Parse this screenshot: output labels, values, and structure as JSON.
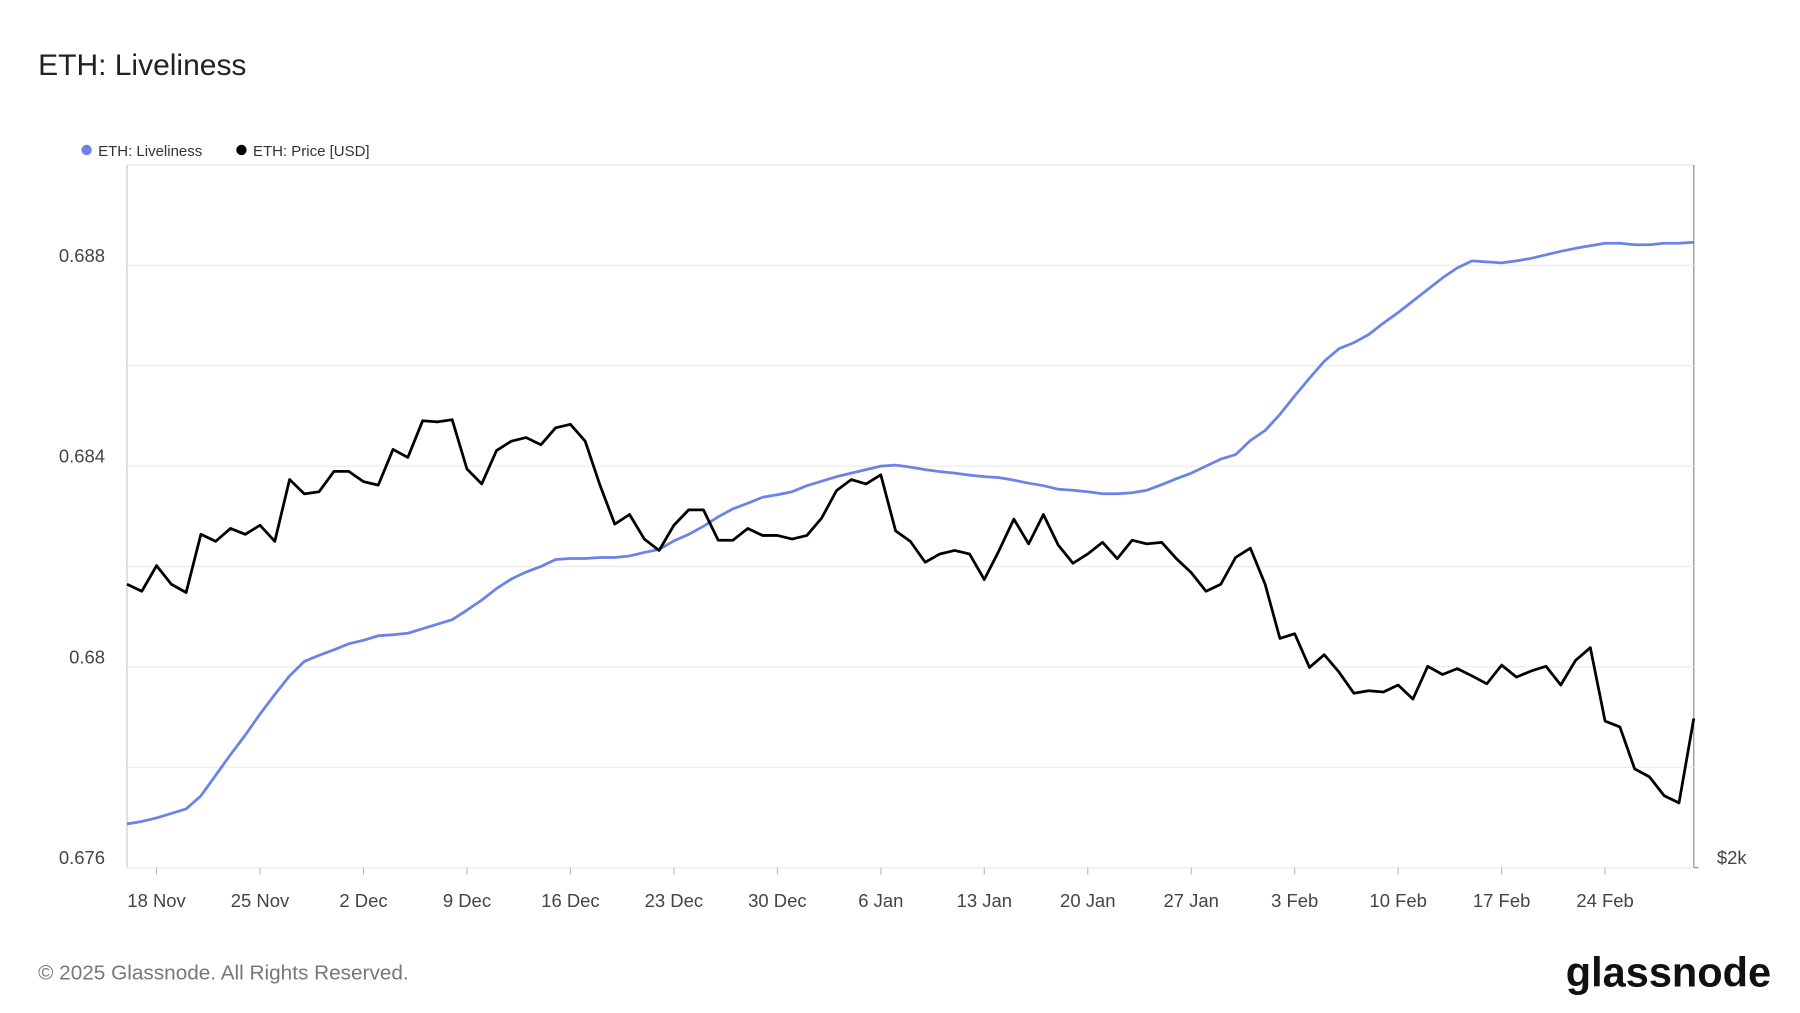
{
  "chart_data": {
    "type": "line",
    "title": "ETH: Liveliness",
    "footer": "© 2025 Glassnode. All Rights Reserved.",
    "brand": "glassnode",
    "categories": [
      null,
      null,
      "18 Nov",
      null,
      null,
      null,
      null,
      null,
      null,
      "25 Nov",
      null,
      null,
      null,
      null,
      null,
      null,
      "2 Dec",
      null,
      null,
      null,
      null,
      null,
      null,
      "9 Dec",
      null,
      null,
      null,
      null,
      null,
      null,
      "16 Dec",
      null,
      null,
      null,
      null,
      null,
      null,
      "23 Dec",
      null,
      null,
      null,
      null,
      null,
      null,
      "30 Dec",
      null,
      null,
      null,
      null,
      null,
      null,
      "6 Jan",
      null,
      null,
      null,
      null,
      null,
      null,
      "13 Jan",
      null,
      null,
      null,
      null,
      null,
      null,
      "20 Jan",
      null,
      null,
      null,
      null,
      null,
      null,
      "27 Jan",
      null,
      null,
      null,
      null,
      null,
      null,
      "3 Feb",
      null,
      null,
      null,
      null,
      null,
      null,
      "10 Feb",
      null,
      null,
      null,
      null,
      null,
      null,
      "17 Feb",
      null,
      null,
      null,
      null,
      null,
      null,
      "24 Feb",
      null,
      null,
      null,
      null,
      null,
      null
    ],
    "series": [
      {
        "name": "ETH: Liveliness",
        "color": "#6b83e6",
        "axis": "y",
        "values": [
          0.67687,
          0.67692,
          0.67699,
          0.67708,
          0.67717,
          0.67743,
          0.67784,
          0.67825,
          0.67864,
          0.67906,
          0.67945,
          0.67982,
          0.68011,
          0.68023,
          0.68034,
          0.68046,
          0.68053,
          0.68062,
          0.68064,
          0.68067,
          0.68076,
          0.68085,
          0.68094,
          0.68113,
          0.68133,
          0.68156,
          0.68175,
          0.68189,
          0.682,
          0.68214,
          0.68216,
          0.68216,
          0.68218,
          0.68218,
          0.68221,
          0.68228,
          0.68234,
          0.68251,
          0.68264,
          0.6828,
          0.68299,
          0.68315,
          0.68326,
          0.68338,
          0.68343,
          0.68349,
          0.68361,
          0.6837,
          0.68379,
          0.68386,
          0.68393,
          0.684,
          0.68402,
          0.68398,
          0.68393,
          0.68389,
          0.68386,
          0.68382,
          0.68379,
          0.68377,
          0.68372,
          0.68366,
          0.68361,
          0.68354,
          0.68352,
          0.68349,
          0.68345,
          0.68345,
          0.68347,
          0.68352,
          0.68363,
          0.68375,
          0.68386,
          0.684,
          0.68414,
          0.68423,
          0.68451,
          0.68471,
          0.68503,
          0.6854,
          0.68575,
          0.68609,
          0.68634,
          0.68646,
          0.68662,
          0.68685,
          0.68706,
          0.68729,
          0.68752,
          0.68775,
          0.68795,
          0.68809,
          0.68807,
          0.68805,
          0.68809,
          0.68814,
          0.68821,
          0.68828,
          0.68834,
          0.68839,
          0.68844,
          0.68844,
          0.68841,
          0.68841,
          0.68844,
          0.68844,
          0.68846
        ]
      },
      {
        "name": "ETH: Price [USD]",
        "color": "#000000",
        "axis": "y2",
        "values": [
          3115,
          3081,
          3207,
          3115,
          3075,
          3368,
          3331,
          3399,
          3368,
          3416,
          3331,
          3669,
          3588,
          3600,
          3716,
          3716,
          3657,
          3637,
          3846,
          3798,
          4022,
          4015,
          4029,
          3730,
          3644,
          3839,
          3896,
          3918,
          3874,
          3978,
          4000,
          3896,
          3637,
          3422,
          3474,
          3343,
          3284,
          3416,
          3499,
          3499,
          3337,
          3337,
          3399,
          3362,
          3362,
          3343,
          3362,
          3455,
          3606,
          3669,
          3644,
          3696,
          3386,
          3331,
          3224,
          3266,
          3284,
          3266,
          3138,
          3284,
          3449,
          3318,
          3474,
          3312,
          3219,
          3266,
          3326,
          3242,
          3337,
          3318,
          3326,
          3242,
          3172,
          3081,
          3115,
          3248,
          3296,
          3115,
          2862,
          2883,
          2735,
          2790,
          2715,
          2627,
          2637,
          2632,
          2661,
          2603,
          2740,
          2705,
          2730,
          2699,
          2666,
          2745,
          2694,
          2720,
          2740,
          2661,
          2765,
          2821,
          2515,
          2492,
          2334,
          2305,
          2238,
          2213,
          2525
        ]
      }
    ],
    "ylim": [
      0.676,
      0.69
    ],
    "yticks": [
      0.676,
      0.68,
      0.684,
      0.688
    ],
    "yminorticks": [
      0.678,
      0.682,
      0.686
    ],
    "y2lim": [
      2000,
      6000
    ],
    "y2ticks": [
      {
        "value": 2000,
        "label": "$2k"
      }
    ],
    "y2log": true,
    "grid": true,
    "legend": "top-left"
  }
}
